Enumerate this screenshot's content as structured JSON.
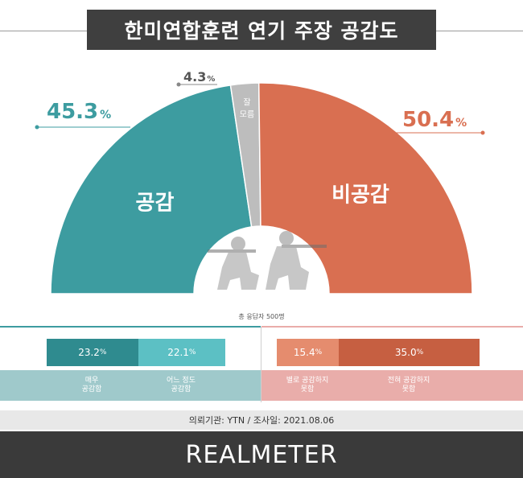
{
  "title": "한미연합훈련 연기 주장 공감도",
  "respondents_note": "총 응답자 500명",
  "colors": {
    "agree": "#3d9ca0",
    "disagree": "#d96f51",
    "unsure": "#bdbdbd",
    "agree_strong": "#2f8b8f",
    "agree_some": "#5cc0c4",
    "agree_band": "#9fc9cb",
    "disagree_some": "#e58c6e",
    "disagree_strong": "#c65f41",
    "disagree_band": "#e9adaa"
  },
  "chart_data": [
    {
      "type": "pie",
      "categories": [
        "공감",
        "잘 모름",
        "비공감"
      ],
      "values": [
        45.3,
        4.3,
        50.4
      ],
      "value_labels": [
        "45.3",
        "4.3",
        "50.4"
      ],
      "unit": "%"
    },
    {
      "type": "bar",
      "categories": [
        "매우 공감함",
        "어느 정도 공감함"
      ],
      "values": [
        23.2,
        22.1
      ],
      "value_labels": [
        "23.2",
        "22.1"
      ],
      "unit": "%"
    },
    {
      "type": "bar",
      "categories": [
        "별로 공감하지 못함",
        "전혀 공감하지 못함"
      ],
      "values": [
        15.4,
        35.0
      ],
      "value_labels": [
        "15.4",
        "35.0"
      ],
      "unit": "%"
    }
  ],
  "band_labels": {
    "agree_strong": [
      "매우",
      "공감함"
    ],
    "agree_some": [
      "어느 정도",
      "공감함"
    ],
    "disagree_some": [
      "별로 공감하지",
      "못함"
    ],
    "disagree_strong": [
      "전혀 공감하지",
      "못함"
    ]
  },
  "unsure_label_lines": [
    "잘",
    "모름"
  ],
  "source_line": "의뢰기관: YTN  /  조사일: 2021.08.06",
  "brand": "REALMETER"
}
